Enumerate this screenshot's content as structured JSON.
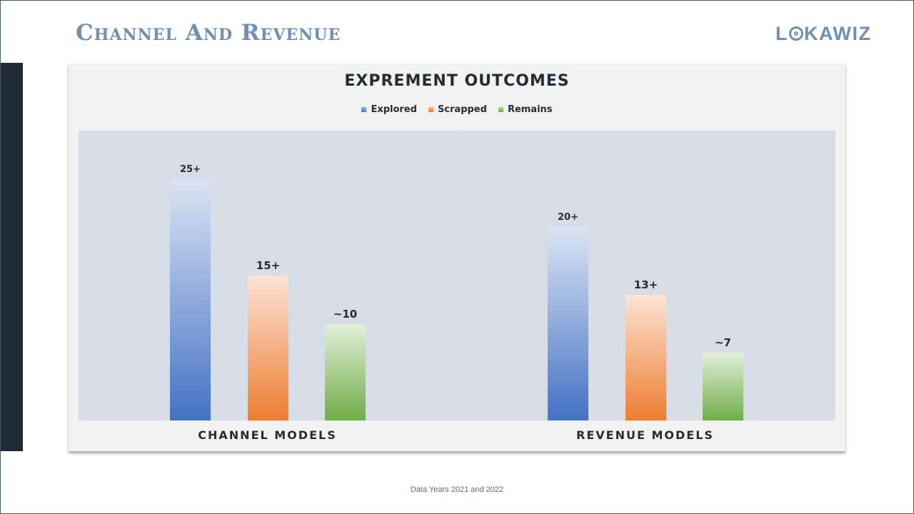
{
  "slide": {
    "title": "Channel And Revenue",
    "logo_text_before": "L",
    "logo_text_after": "KAWIZ",
    "footnote": "Data Years 2021 and 2022"
  },
  "colors": {
    "title": "#6f8fb4",
    "sidebar": "#212b38",
    "explored": "#4472c4",
    "scrapped": "#ed7d31",
    "remains": "#70ad47"
  },
  "chart_data": {
    "type": "bar",
    "title": "EXPREMENT OUTCOMES",
    "categories": [
      "CHANNEL MODELS",
      "REVENUE MODELS"
    ],
    "series": [
      {
        "name": "Explored",
        "values": [
          25,
          20
        ],
        "labels": [
          "25+",
          "20+"
        ]
      },
      {
        "name": "Scrapped",
        "values": [
          15,
          13
        ],
        "labels": [
          "15+",
          "13+"
        ]
      },
      {
        "name": "Remains",
        "values": [
          10,
          7
        ],
        "labels": [
          "~10",
          "~7"
        ]
      }
    ],
    "xlabel": "",
    "ylabel": "",
    "ylim": [
      0,
      30
    ],
    "legend": "top-center",
    "grid": false
  }
}
